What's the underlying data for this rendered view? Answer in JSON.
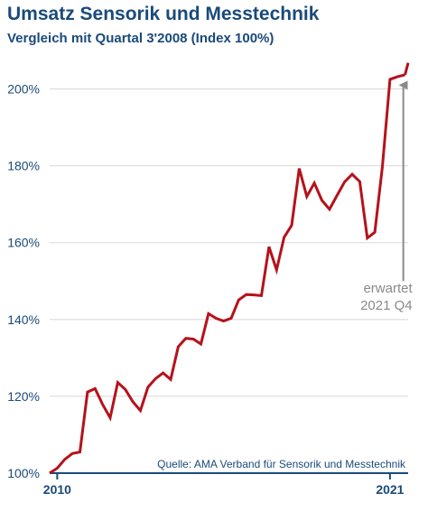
{
  "chart_data": {
    "type": "line",
    "title": "Umsatz Sensorik und Messtechnik",
    "subtitle": "Vergleich mit Quartal 3'2008 (Index 100%)",
    "ylim": [
      100,
      210
    ],
    "yticks": [
      100,
      120,
      140,
      160,
      180,
      200
    ],
    "ytick_labels": [
      "100%",
      "120%",
      "140%",
      "160%",
      "180%",
      "200%"
    ],
    "xlim": [
      2009.75,
      2021.6
    ],
    "xticks": [
      2010,
      2021
    ],
    "xtick_labels": [
      "2010",
      "2021"
    ],
    "grid": "horizontal",
    "series": [
      {
        "color": "#b5121b",
        "x": [
          2009.75,
          2010.0,
          2010.25,
          2010.5,
          2010.75,
          2011.0,
          2011.25,
          2011.5,
          2011.75,
          2012.0,
          2012.25,
          2012.5,
          2012.75,
          2013.0,
          2013.25,
          2013.5,
          2013.75,
          2014.0,
          2014.25,
          2014.5,
          2014.75,
          2015.0,
          2015.25,
          2015.5,
          2015.75,
          2016.0,
          2016.25,
          2016.5,
          2016.75,
          2017.0,
          2017.25,
          2017.5,
          2017.75,
          2018.0,
          2018.25,
          2018.5,
          2018.75,
          2019.0,
          2019.25,
          2019.5,
          2019.75,
          2020.0,
          2020.25,
          2020.5,
          2020.75,
          2021.0,
          2021.25,
          2021.5
        ],
        "y": [
          100,
          101.3,
          103.6,
          105.1,
          105.5,
          121.1,
          122.0,
          117.9,
          114.4,
          123.6,
          121.8,
          118.6,
          116.3,
          122.4,
          124.6,
          126.1,
          124.4,
          132.9,
          135.1,
          134.9,
          133.6,
          141.5,
          140.3,
          139.6,
          140.3,
          145.1,
          146.5,
          146.4,
          146.2,
          158.9,
          152.9,
          161.4,
          164.5,
          179.3,
          172.0,
          175.5,
          171.0,
          168.7,
          172.3,
          175.8,
          177.8,
          175.9,
          161.2,
          162.7,
          179.8,
          202.5,
          203.2,
          203.7
        ]
      }
    ],
    "projection": {
      "x": [
        2021.5,
        2021.6
      ],
      "y": [
        203.7,
        206.8
      ]
    },
    "annotation": {
      "lines": [
        "erwartet",
        "2021 Q4"
      ]
    },
    "source": "Quelle: AMA Verband für Sensorik und Messtechnik"
  }
}
